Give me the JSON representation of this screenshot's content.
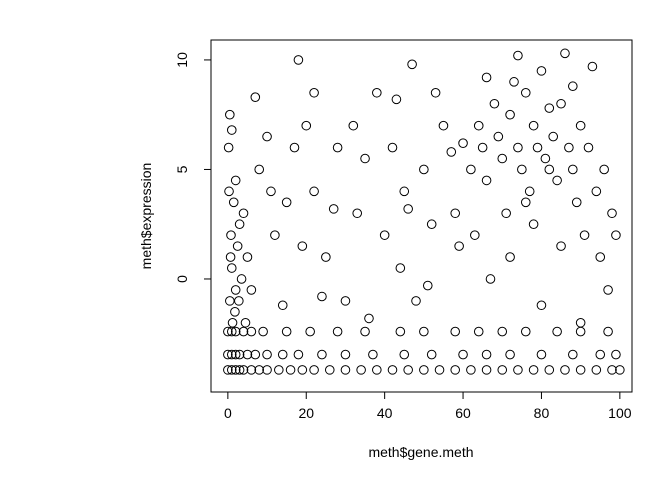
{
  "chart_data": {
    "type": "scatter",
    "x_label": "meth$gene.meth",
    "y_label": "meth$expression",
    "xlim": [
      -4.3,
      103.1
    ],
    "ylim": [
      -5.16,
      10.91
    ],
    "xticks": [
      0,
      20,
      40,
      60,
      80,
      100
    ],
    "yticks": [
      0,
      5,
      10
    ],
    "color": "#000000",
    "x": [
      0,
      1,
      2,
      3,
      4,
      6,
      8,
      10,
      13,
      16,
      19,
      22,
      26,
      30,
      34,
      38,
      42,
      46,
      50,
      54,
      58,
      62,
      66,
      70,
      74,
      78,
      82,
      86,
      90,
      94,
      98,
      100,
      0,
      1,
      2,
      3,
      5,
      7,
      10,
      14,
      18,
      24,
      30,
      37,
      45,
      52,
      60,
      66,
      72,
      80,
      88,
      95,
      99,
      0,
      1,
      2,
      4,
      6,
      9,
      15,
      21,
      28,
      35,
      44,
      50,
      58,
      64,
      70,
      76,
      84,
      90,
      97,
      0.5,
      1,
      0.8,
      1.5,
      2,
      2.5,
      3,
      0.3,
      1.2,
      3.5,
      4,
      2,
      0.7,
      1.8,
      2.8,
      5,
      6,
      4.5,
      0.2,
      1,
      0.5,
      8,
      10,
      12,
      15,
      18,
      20,
      22,
      25,
      28,
      30,
      33,
      35,
      38,
      40,
      14,
      24,
      19,
      27,
      32,
      7,
      11,
      36,
      22,
      17,
      42,
      45,
      47,
      50,
      52,
      55,
      58,
      44,
      48,
      53,
      57,
      60,
      46,
      51,
      59,
      43,
      62,
      64,
      65,
      66,
      68,
      69,
      70,
      71,
      72,
      73,
      74,
      75,
      76,
      77,
      78,
      79,
      80,
      81,
      82,
      83,
      84,
      85,
      86,
      87,
      88,
      89,
      90,
      91,
      92,
      93,
      94,
      95,
      96,
      97,
      98,
      99,
      63,
      67,
      74,
      80,
      85,
      90,
      72,
      78,
      88,
      66,
      76,
      82
    ],
    "y": [
      -4.15,
      -4.15,
      -4.15,
      -4.15,
      -4.15,
      -4.15,
      -4.15,
      -4.15,
      -4.15,
      -4.15,
      -4.15,
      -4.15,
      -4.15,
      -4.15,
      -4.15,
      -4.15,
      -4.15,
      -4.15,
      -4.15,
      -4.15,
      -4.15,
      -4.15,
      -4.15,
      -4.15,
      -4.15,
      -4.15,
      -4.15,
      -4.15,
      -4.15,
      -4.15,
      -4.15,
      -4.15,
      -3.45,
      -3.45,
      -3.45,
      -3.45,
      -3.45,
      -3.45,
      -3.45,
      -3.45,
      -3.45,
      -3.45,
      -3.45,
      -3.45,
      -3.45,
      -3.45,
      -3.45,
      -3.45,
      -3.45,
      -3.45,
      -3.45,
      -3.45,
      -3.45,
      -2.4,
      -2.4,
      -2.4,
      -2.4,
      -2.4,
      -2.4,
      -2.4,
      -2.4,
      -2.4,
      -2.4,
      -2.4,
      -2.4,
      -2.4,
      -2.4,
      -2.4,
      -2.4,
      -2.4,
      -2.4,
      -2.4,
      -1,
      0.5,
      2,
      3.5,
      -0.5,
      1.5,
      2.5,
      4,
      -2,
      0,
      3,
      4.5,
      1,
      -1.5,
      -1,
      1,
      -0.5,
      -2,
      6,
      6.8,
      7.5,
      5,
      6.5,
      2,
      3.5,
      10,
      7,
      4,
      1,
      6,
      -1,
      3,
      5.5,
      8.5,
      2,
      -1.2,
      -0.8,
      1.5,
      3.2,
      7,
      8.3,
      4,
      -1.8,
      8.5,
      6,
      6,
      4,
      9.8,
      5,
      2.5,
      7,
      3,
      0.5,
      -1,
      8.5,
      5.8,
      6.2,
      3.2,
      -0.3,
      1.5,
      8.2,
      5,
      7,
      6,
      4.5,
      8,
      6.5,
      5.5,
      3,
      7.5,
      9,
      6,
      5,
      8.5,
      4,
      7,
      6,
      9.5,
      5.5,
      7.8,
      6.5,
      4.5,
      8,
      10.3,
      6,
      5,
      3.5,
      7,
      2,
      6,
      9.7,
      4,
      1,
      5,
      -0.5,
      3,
      2,
      2,
      0,
      10.2,
      -1.2,
      1.5,
      -2,
      1,
      2.5,
      8.8,
      9.2,
      3.5,
      5
    ]
  }
}
